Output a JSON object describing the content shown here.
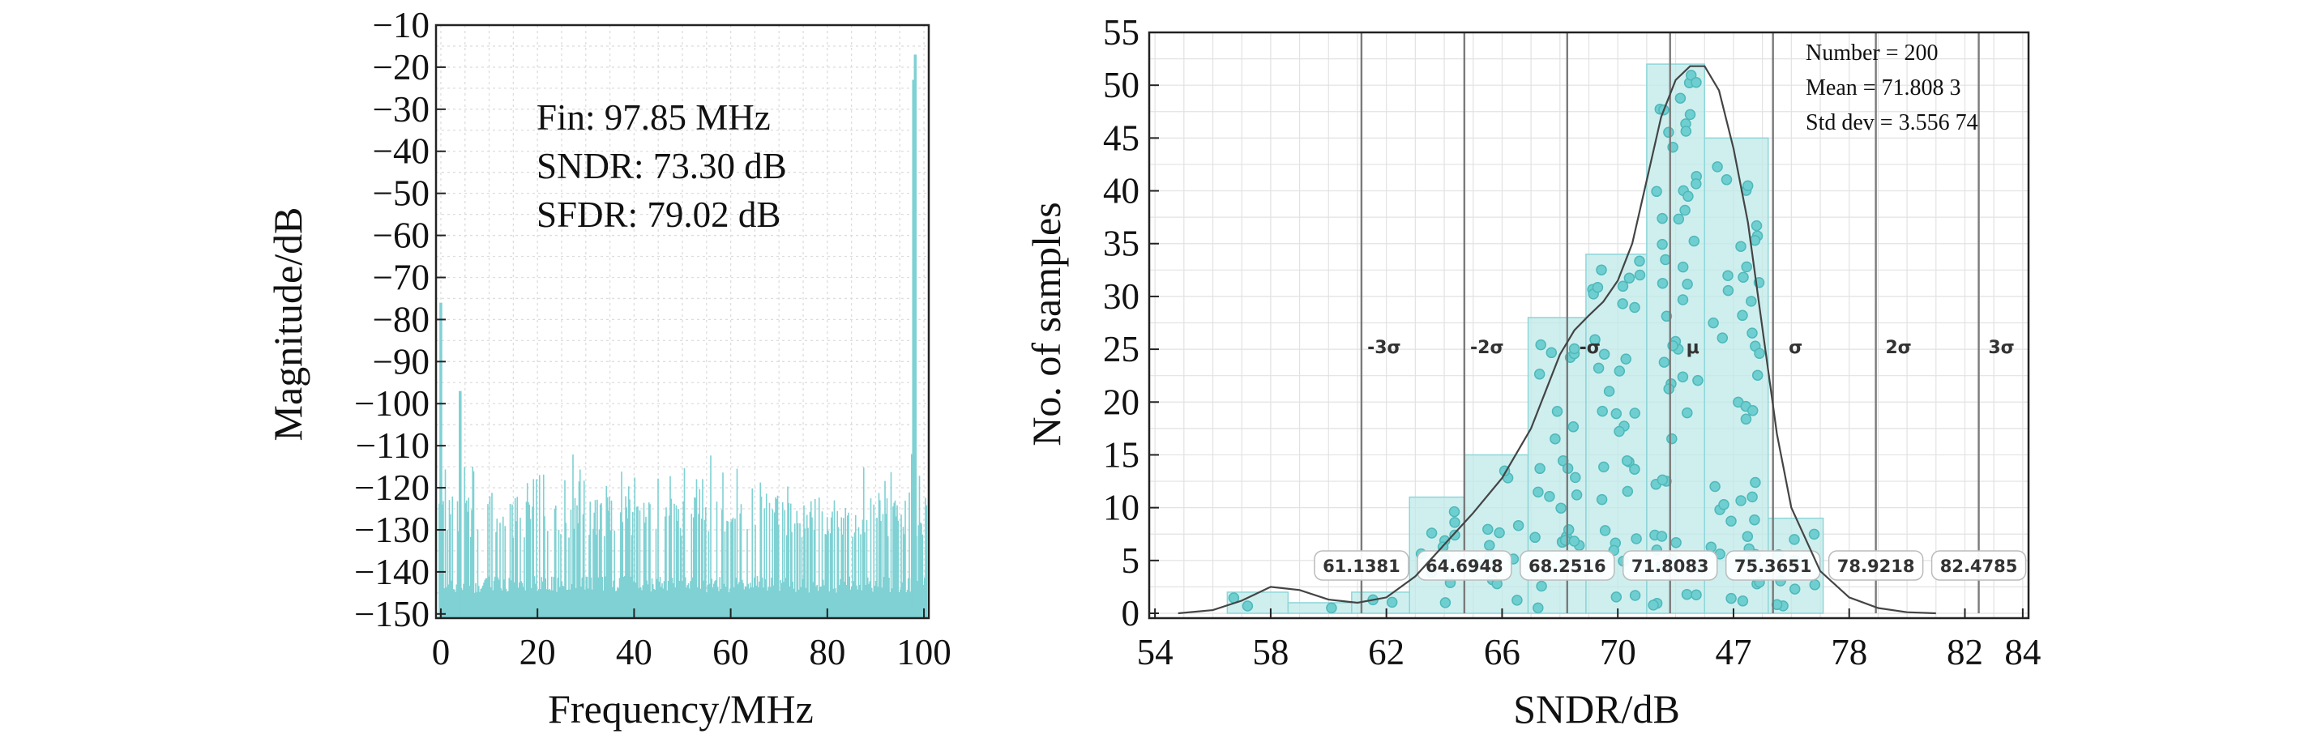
{
  "chart_data": [
    {
      "type": "line",
      "xlabel": "Frequency/MHz",
      "ylabel": "Magnitude/dB",
      "xlim": [
        0,
        100
      ],
      "ylim": [
        -150,
        -10
      ],
      "xticks": [
        "0",
        "20",
        "40",
        "60",
        "80",
        "100"
      ],
      "yticks": [
        "−10",
        "−20",
        "−30",
        "−40",
        "−50",
        "−60",
        "−70",
        "−80",
        "−90",
        "−100",
        "−110",
        "−120",
        "−130",
        "−140",
        "−150"
      ],
      "annotations": [
        "Fin: 97.85 MHz",
        "SNDR: 73.30 dB",
        "SFDR: 79.02 dB"
      ],
      "grid": true,
      "series": [
        {
          "color": "#7fd1d3",
          "spikes": [
            {
              "x": 0.0,
              "y": -76
            },
            {
              "x": 4.0,
              "y": -97
            },
            {
              "x": 97.85,
              "y": -23
            },
            {
              "x": 98.2,
              "y": -17
            },
            {
              "x": 97.6,
              "y": -112
            }
          ],
          "noise_floor_range": [
            -145,
            -112
          ]
        }
      ]
    },
    {
      "type": "bar",
      "xlabel": "SNDR/dB",
      "ylabel": "No. of samples",
      "xlim": [
        54,
        84
      ],
      "ylim": [
        0,
        55
      ],
      "xticks": [
        "54",
        "58",
        "62",
        "66",
        "70",
        "47",
        "78",
        "82",
        "84"
      ],
      "yticks": [
        "0",
        "5",
        "10",
        "15",
        "20",
        "25",
        "30",
        "35",
        "40",
        "45",
        "50",
        "55"
      ],
      "grid": true,
      "bin_edges": [
        56.5,
        58.6,
        60.8,
        62.8,
        64.7,
        66.9,
        68.9,
        71.0,
        73.0,
        75.2,
        77.1,
        79.0
      ],
      "values": [
        2,
        1,
        2,
        11,
        15,
        28,
        34,
        52,
        45,
        9,
        0
      ],
      "density_curve": {
        "x": [
          54.8,
          56,
          57,
          58,
          59,
          60,
          61,
          62,
          63,
          64,
          65,
          66,
          67,
          67.5,
          68,
          68.5,
          69,
          69.5,
          70,
          70.5,
          71,
          71.5,
          72,
          72.5,
          73,
          73.5,
          74,
          74.5,
          75,
          75.5,
          76,
          77,
          78,
          79,
          80,
          81
        ],
        "y": [
          0,
          0.3,
          1.2,
          2.5,
          2.2,
          1.3,
          1.0,
          1.5,
          3.5,
          6.5,
          9.5,
          12.8,
          17.5,
          21,
          24.5,
          26.8,
          28.2,
          29.5,
          31.5,
          35,
          41,
          47,
          50.5,
          51.8,
          51.8,
          49.5,
          44,
          37,
          27,
          17,
          10,
          4,
          1.5,
          0.5,
          0.1,
          0
        ]
      },
      "stats": [
        "Number = 200",
        "Mean = 71.808 3",
        "Std dev = 3.556 74"
      ],
      "sigma_lines": [
        {
          "label": "-3σ",
          "value": "61.1381",
          "x": 61.1381
        },
        {
          "label": "-2σ",
          "value": "64.6948",
          "x": 64.6948
        },
        {
          "label": "-σ",
          "value": "68.2516",
          "x": 68.2516
        },
        {
          "label": "μ",
          "value": "71.8083",
          "x": 71.8083
        },
        {
          "label": "σ",
          "value": "75.3651",
          "x": 75.3651
        },
        {
          "label": "2σ",
          "value": "78.9218",
          "x": 78.9218
        },
        {
          "label": "3σ",
          "value": "82.4785",
          "x": 82.4785
        }
      ]
    }
  ]
}
